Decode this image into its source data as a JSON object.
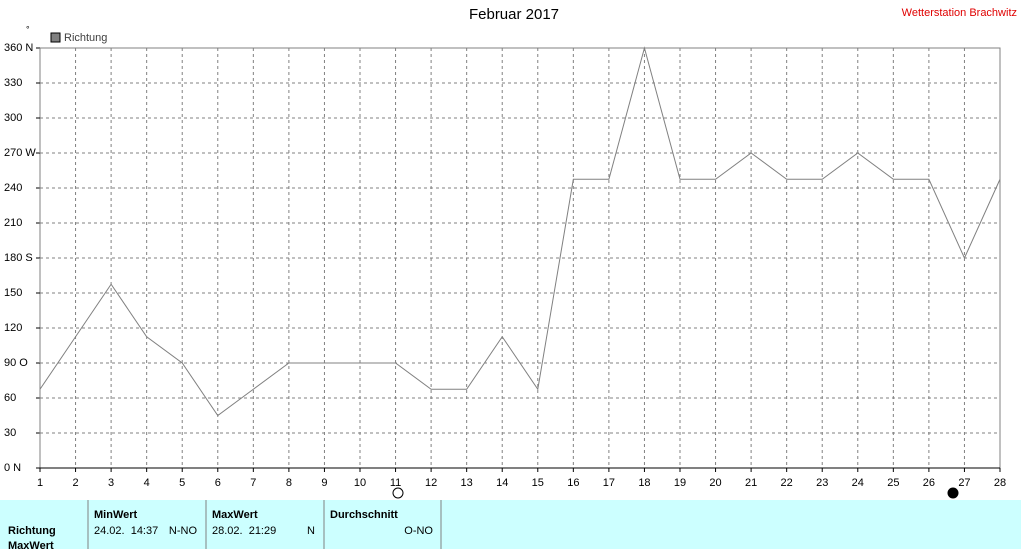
{
  "chart_data": {
    "type": "line",
    "title": "Februar 2017",
    "subtitle": "Wetterstation Brachwitz",
    "y_unit": "°",
    "x": [
      1,
      2,
      3,
      4,
      5,
      6,
      7,
      8,
      9,
      10,
      11,
      12,
      13,
      14,
      15,
      16,
      17,
      18,
      19,
      20,
      21,
      22,
      23,
      24,
      25,
      26,
      27,
      28
    ],
    "xlim": [
      1,
      28
    ],
    "xticks": [
      1,
      2,
      3,
      4,
      5,
      6,
      7,
      8,
      9,
      10,
      11,
      12,
      13,
      14,
      15,
      16,
      17,
      18,
      19,
      20,
      21,
      22,
      23,
      24,
      25,
      26,
      27,
      28
    ],
    "ylim": [
      0,
      360
    ],
    "yticks": [
      {
        "value": 0,
        "label": "0 N"
      },
      30,
      60,
      {
        "value": 90,
        "label": "90 O"
      },
      120,
      150,
      {
        "value": 180,
        "label": "180 S"
      },
      210,
      240,
      {
        "value": 270,
        "label": "270 W"
      },
      300,
      330,
      {
        "value": 360,
        "label": "360 N"
      }
    ],
    "grid": true,
    "series": [
      {
        "name": "Richtung",
        "color": "#808080",
        "values": [
          67.5,
          112.5,
          157.5,
          112.5,
          90,
          45,
          67.5,
          90,
          90,
          90,
          90,
          67.5,
          67.5,
          112.5,
          67.5,
          247.5,
          247.5,
          360,
          247.5,
          247.5,
          270,
          247.5,
          247.5,
          270,
          247.5,
          247.5,
          180,
          247.5
        ]
      }
    ]
  },
  "table": {
    "headers": [
      "MinWert",
      "MaxWert",
      "Durchschnitt"
    ],
    "rows": [
      [
        "Richtung",
        "24.02.  14:37",
        "N-NO",
        "28.02.  21:29",
        "N",
        "O-NO"
      ],
      [
        "MaxWert"
      ]
    ]
  }
}
